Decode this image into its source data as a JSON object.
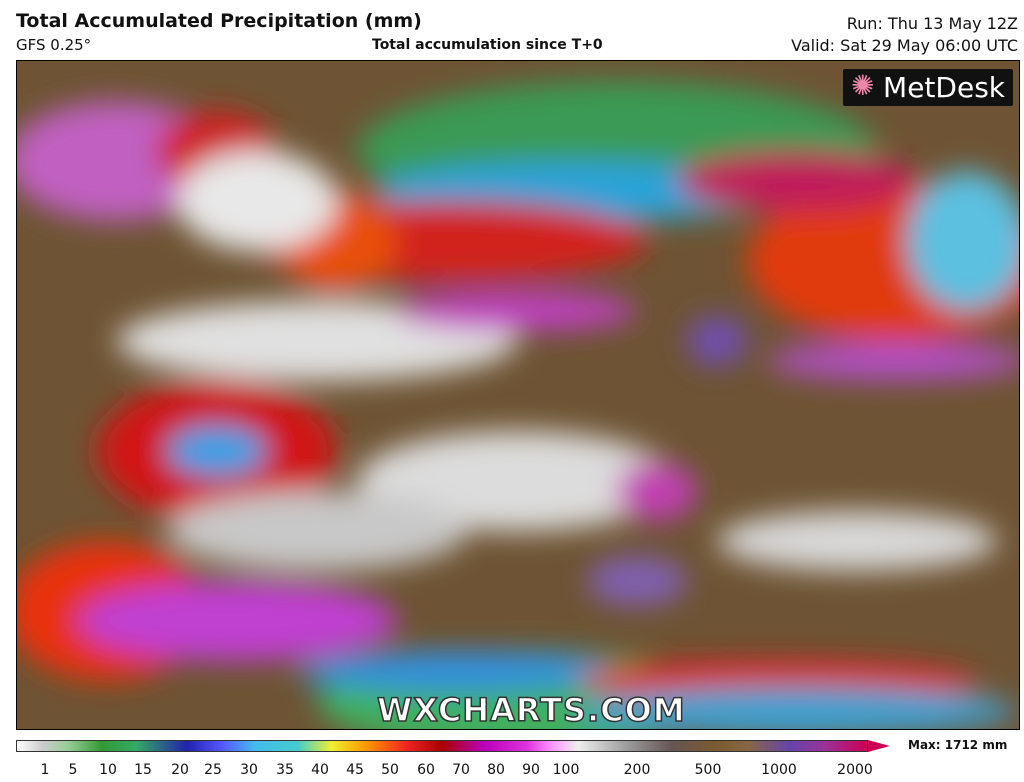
{
  "header": {
    "title": "Total Accumulated Precipitation (mm)",
    "model": "GFS 0.25°",
    "subtitle": "Total accumulation since T+0",
    "run": "Run: Thu 13 May 12Z",
    "valid": "Valid: Sat 29 May 06:00 UTC"
  },
  "map": {
    "logo": "MetDesk",
    "watermark": "WXCHARTS.COM"
  },
  "legend": {
    "ticks": [
      1,
      5,
      10,
      15,
      20,
      25,
      30,
      35,
      40,
      45,
      50,
      60,
      70,
      80,
      90,
      100,
      200,
      500,
      1000,
      2000
    ],
    "max": "Max: 1712 mm"
  }
}
